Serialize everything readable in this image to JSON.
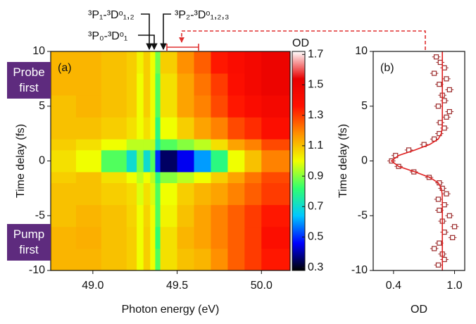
{
  "chart_data": [
    {
      "type": "heatmap",
      "xlabel": "Photon energy (eV)",
      "ylabel": "Time delay (fs)",
      "panel_label": "(a)",
      "colorbar_label": "OD",
      "annotations": [
        "³P₁-³Dᵒ₁,₂",
        "³P₀-³Dᵒ₁",
        "³P₂-³Dᵒ₁,₂,₃"
      ],
      "side_labels": [
        "Probe first",
        "Pump first"
      ],
      "x": [
        48.75,
        48.9,
        49.05,
        49.2,
        49.26,
        49.3,
        49.34,
        49.37,
        49.4,
        49.5,
        49.6,
        49.7,
        49.8,
        49.9,
        50.0,
        50.17
      ],
      "y": [
        -10,
        -8,
        -6,
        -4,
        -2,
        -1,
        1,
        2,
        4,
        6,
        8,
        10
      ],
      "values": [
        [
          1.12,
          1.12,
          1.1,
          1.08,
          1.0,
          1.08,
          1.0,
          0.85,
          1.05,
          1.1,
          1.12,
          1.18,
          1.25,
          1.3,
          1.35
        ],
        [
          1.12,
          1.13,
          1.1,
          1.08,
          1.0,
          1.08,
          1.0,
          0.82,
          1.05,
          1.12,
          1.15,
          1.2,
          1.25,
          1.3,
          1.38
        ],
        [
          1.1,
          1.12,
          1.1,
          1.07,
          1.0,
          1.07,
          1.0,
          0.85,
          1.02,
          1.1,
          1.15,
          1.2,
          1.25,
          1.3,
          1.35
        ],
        [
          1.1,
          1.1,
          1.08,
          1.06,
          0.98,
          1.05,
          0.98,
          0.85,
          1.0,
          1.08,
          1.12,
          1.15,
          1.2,
          1.25,
          1.3
        ],
        [
          1.08,
          1.1,
          1.05,
          1.0,
          0.95,
          1.0,
          0.95,
          0.8,
          0.9,
          0.95,
          1.0,
          1.08,
          1.15,
          1.22,
          1.28
        ],
        [
          1.05,
          1.0,
          0.85,
          0.7,
          0.9,
          0.7,
          0.85,
          0.5,
          0.35,
          0.45,
          0.6,
          0.8,
          1.0,
          1.1,
          1.2
        ],
        [
          1.08,
          1.05,
          1.0,
          0.95,
          0.95,
          0.95,
          0.95,
          0.75,
          0.85,
          0.9,
          0.95,
          1.05,
          1.15,
          1.2,
          1.28
        ],
        [
          1.1,
          1.1,
          1.08,
          1.05,
          1.0,
          1.05,
          1.0,
          0.8,
          1.0,
          1.08,
          1.15,
          1.2,
          1.28,
          1.32,
          1.38
        ],
        [
          1.1,
          1.12,
          1.1,
          1.08,
          1.0,
          1.08,
          1.0,
          0.85,
          1.05,
          1.15,
          1.2,
          1.28,
          1.35,
          1.4,
          1.45
        ],
        [
          1.12,
          1.12,
          1.1,
          1.08,
          1.0,
          1.08,
          1.0,
          0.85,
          1.05,
          1.15,
          1.22,
          1.3,
          1.38,
          1.45,
          1.5
        ],
        [
          1.12,
          1.12,
          1.1,
          1.08,
          1.02,
          1.08,
          1.0,
          0.88,
          1.08,
          1.18,
          1.25,
          1.35,
          1.4,
          1.45,
          1.5
        ]
      ],
      "xlim": [
        48.75,
        50.17
      ],
      "ylim": [
        -10,
        10
      ],
      "xticks": [
        {
          "value": 49,
          "label": "49.0"
        },
        {
          "value": 49.5,
          "label": "49.5"
        },
        {
          "value": 50,
          "label": "50.0"
        }
      ],
      "yticks": [
        -10,
        -5,
        0,
        5,
        10
      ],
      "clim": [
        0.28,
        1.72
      ],
      "cticks": [
        0.3,
        0.5,
        0.7,
        0.9,
        1.1,
        1.3,
        1.5,
        1.7
      ],
      "colormap": [
        "#000000",
        "#0000ff",
        "#00c8ff",
        "#30ff70",
        "#f0ff00",
        "#ff9000",
        "#ff1000",
        "#e80000",
        "#ffffff"
      ]
    },
    {
      "type": "scatter",
      "xlabel": "OD",
      "ylabel": "Time delay (fs)",
      "panel_label": "(b)",
      "color": "#9b2a2a",
      "y": [
        -9.5,
        -9,
        -8.5,
        -8,
        -7.5,
        -7,
        -6.5,
        -6,
        -5.5,
        -5,
        -4.5,
        -4,
        -3.5,
        -3,
        -2.5,
        -2,
        -1.5,
        -1,
        -0.5,
        0,
        0.5,
        1,
        1.5,
        2,
        2.5,
        3,
        3.5,
        4,
        4.5,
        5,
        5.5,
        6,
        6.5,
        7,
        7.5,
        8,
        8.5,
        9,
        9.5
      ],
      "x": [
        0.84,
        0.9,
        0.88,
        0.8,
        0.85,
        0.98,
        0.9,
        1.0,
        0.88,
        0.95,
        0.85,
        0.9,
        0.84,
        0.92,
        0.88,
        0.85,
        0.75,
        0.6,
        0.45,
        0.38,
        0.42,
        0.55,
        0.7,
        0.8,
        0.85,
        0.9,
        0.86,
        0.92,
        0.95,
        0.84,
        0.9,
        0.88,
        0.95,
        0.85,
        0.92,
        0.8,
        0.9,
        0.86,
        0.82
      ],
      "xerr": 0.04,
      "fit": {
        "color": "#e02020",
        "y": [
          -10,
          -4,
          -3,
          -2.5,
          -2,
          -1.5,
          -1,
          -0.5,
          0,
          0.5,
          1,
          1.5,
          2,
          2.5,
          3,
          4,
          10
        ],
        "x": [
          0.88,
          0.88,
          0.878,
          0.87,
          0.84,
          0.755,
          0.61,
          0.45,
          0.38,
          0.45,
          0.61,
          0.755,
          0.84,
          0.87,
          0.878,
          0.88,
          0.88
        ]
      },
      "xlim": [
        0.2,
        1.1
      ],
      "ylim": [
        -10,
        10
      ],
      "xticks": [
        0.4,
        {
          "value": 1,
          "label": "1.0"
        }
      ],
      "yticks": [
        -10,
        -5,
        0,
        5,
        10
      ]
    }
  ]
}
